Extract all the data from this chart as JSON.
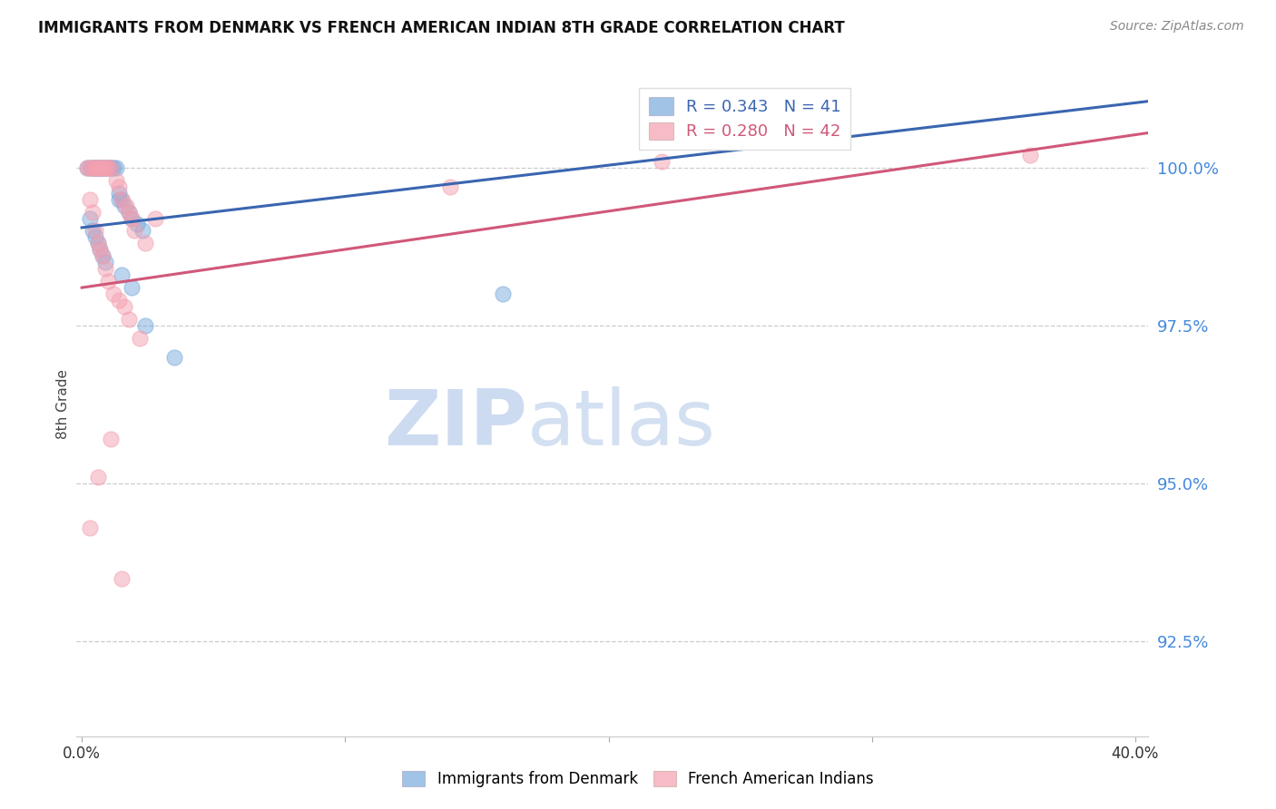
{
  "title": "IMMIGRANTS FROM DENMARK VS FRENCH AMERICAN INDIAN 8TH GRADE CORRELATION CHART",
  "source": "Source: ZipAtlas.com",
  "ylabel": "8th Grade",
  "ytick_values": [
    100.0,
    97.5,
    95.0,
    92.5
  ],
  "ymin": 91.0,
  "ymax": 101.5,
  "xmin": -0.002,
  "xmax": 0.405,
  "blue_color": "#7AABDC",
  "pink_color": "#F4A0B0",
  "blue_line_color": "#3A65B0",
  "pink_line_color": "#D05878",
  "watermark_zip": "ZIP",
  "watermark_atlas": "atlas",
  "blue_line_x0": 0.0,
  "blue_line_x1": 0.405,
  "blue_line_y0": 99.05,
  "blue_line_y1": 101.05,
  "pink_line_x0": 0.0,
  "pink_line_x1": 0.405,
  "pink_line_y0": 98.1,
  "pink_line_y1": 100.55,
  "blue_scatter_x": [
    0.002,
    0.003,
    0.004,
    0.004,
    0.005,
    0.005,
    0.005,
    0.006,
    0.006,
    0.007,
    0.007,
    0.008,
    0.008,
    0.009,
    0.009,
    0.01,
    0.01,
    0.011,
    0.011,
    0.012,
    0.013,
    0.014,
    0.015,
    0.016,
    0.018,
    0.019,
    0.021,
    0.023,
    0.003,
    0.004,
    0.005,
    0.006,
    0.007,
    0.008,
    0.009,
    0.014,
    0.015,
    0.019,
    0.024,
    0.035,
    0.16
  ],
  "blue_scatter_y": [
    100.0,
    100.0,
    100.0,
    100.0,
    100.0,
    100.0,
    100.0,
    100.0,
    100.0,
    100.0,
    100.0,
    100.0,
    100.0,
    100.0,
    100.0,
    100.0,
    100.0,
    100.0,
    100.0,
    100.0,
    100.0,
    99.6,
    99.5,
    99.4,
    99.3,
    99.2,
    99.1,
    99.0,
    99.2,
    99.0,
    98.9,
    98.8,
    98.7,
    98.6,
    98.5,
    99.5,
    98.3,
    98.1,
    97.5,
    97.0,
    98.0
  ],
  "pink_scatter_x": [
    0.002,
    0.003,
    0.004,
    0.005,
    0.005,
    0.006,
    0.007,
    0.008,
    0.008,
    0.009,
    0.009,
    0.01,
    0.011,
    0.013,
    0.014,
    0.015,
    0.017,
    0.018,
    0.019,
    0.02,
    0.024,
    0.003,
    0.004,
    0.005,
    0.006,
    0.007,
    0.008,
    0.009,
    0.01,
    0.012,
    0.014,
    0.016,
    0.018,
    0.022,
    0.028,
    0.14,
    0.22,
    0.003,
    0.006,
    0.011,
    0.015,
    0.36
  ],
  "pink_scatter_y": [
    100.0,
    100.0,
    100.0,
    100.0,
    100.0,
    100.0,
    100.0,
    100.0,
    100.0,
    100.0,
    100.0,
    100.0,
    100.0,
    99.8,
    99.7,
    99.5,
    99.4,
    99.3,
    99.2,
    99.0,
    98.8,
    99.5,
    99.3,
    99.0,
    98.8,
    98.7,
    98.6,
    98.4,
    98.2,
    98.0,
    97.9,
    97.8,
    97.6,
    97.3,
    99.2,
    99.7,
    100.1,
    94.3,
    95.1,
    95.7,
    93.5,
    100.2
  ],
  "xtick_positions": [
    0.0,
    0.1,
    0.2,
    0.3,
    0.4
  ],
  "xtick_labels_show": [
    "0.0%",
    "",
    "",
    "",
    "40.0%"
  ]
}
